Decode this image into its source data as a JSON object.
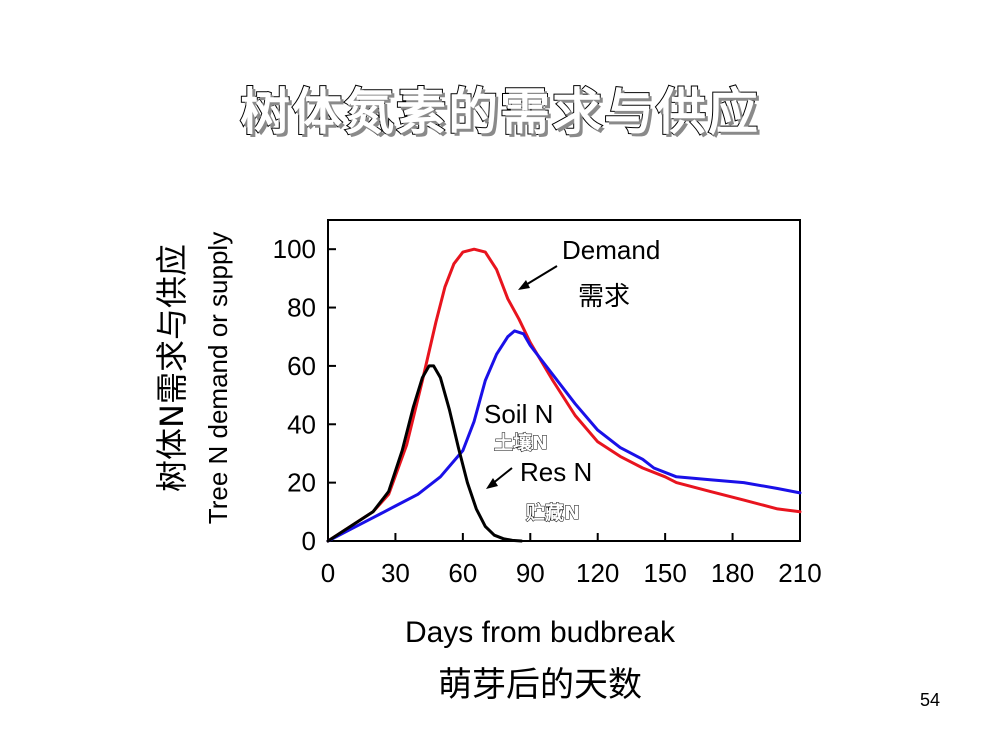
{
  "slide": {
    "title": "树体氮素的需求与供应",
    "page_number": "54"
  },
  "chart_data": {
    "type": "line",
    "xlabel": "Days from budbreak",
    "xlabel_cn": "萌芽后的天数",
    "ylabel": "Tree N demand or supply",
    "ylabel_cn": "树体N需求与供应",
    "xlim": [
      0,
      210
    ],
    "ylim": [
      0,
      110
    ],
    "xticks": [
      0,
      30,
      60,
      90,
      120,
      150,
      180,
      210
    ],
    "yticks": [
      0,
      20,
      40,
      60,
      80,
      100
    ],
    "grid": false,
    "series": [
      {
        "name": "Demand",
        "color": "#e8141e",
        "x": [
          0,
          10,
          20,
          27,
          35,
          42,
          48,
          52,
          56,
          60,
          65,
          70,
          75,
          80,
          85,
          90,
          100,
          110,
          120,
          130,
          140,
          150,
          155,
          170,
          185,
          200,
          210
        ],
        "y": [
          0,
          5,
          10,
          16,
          33,
          55,
          75,
          87,
          95,
          99,
          100,
          99,
          93,
          83,
          76,
          68,
          55,
          43,
          34,
          29,
          25,
          22,
          20,
          17,
          14,
          11,
          10
        ]
      },
      {
        "name": "Soil N",
        "color": "#1a10e8",
        "x": [
          0,
          10,
          20,
          30,
          40,
          50,
          60,
          65,
          70,
          75,
          80,
          83,
          87,
          90,
          100,
          110,
          120,
          130,
          140,
          145,
          155,
          170,
          185,
          200,
          210
        ],
        "y": [
          0,
          4,
          8,
          12,
          16,
          22,
          31,
          41,
          55,
          64,
          70,
          72,
          71,
          67,
          57,
          47,
          38,
          32,
          28,
          25,
          22,
          21,
          20,
          18,
          16.5
        ]
      },
      {
        "name": "Res N",
        "color": "#000000",
        "x": [
          0,
          10,
          20,
          27,
          33,
          38,
          42,
          45,
          47,
          50,
          54,
          58,
          62,
          66,
          70,
          74,
          78,
          82,
          86
        ],
        "y": [
          0,
          5,
          10,
          17,
          31,
          46,
          56,
          60,
          60,
          56,
          45,
          32,
          20,
          11,
          5,
          2,
          0.8,
          0.2,
          0
        ]
      }
    ],
    "annotations": [
      {
        "label": "Demand",
        "label_cn": "需求"
      },
      {
        "label": "Soil N",
        "label_cn": "土壤N"
      },
      {
        "label": "Res N",
        "label_cn": "贮藏N"
      }
    ]
  }
}
